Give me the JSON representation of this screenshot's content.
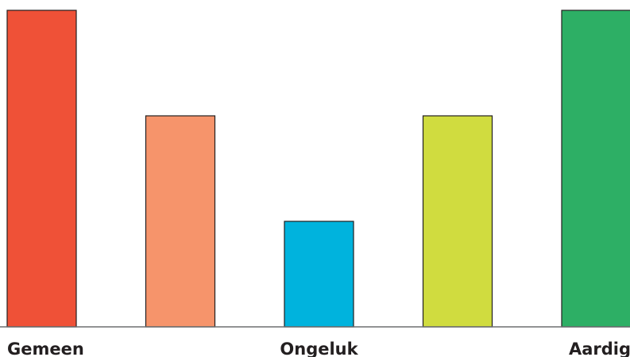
{
  "chart_data": {
    "type": "bar",
    "categories": [
      "Gemeen",
      "",
      "Ongeluk",
      "",
      "Aardig"
    ],
    "values": [
      3,
      2,
      1,
      2,
      3
    ],
    "ylim": [
      0,
      3
    ],
    "grid": false,
    "colors": [
      "#ef5137",
      "#f6946b",
      "#00b3dd",
      "#d0dc3f",
      "#2daf65"
    ],
    "bar_stroke": "#231f20",
    "axis_color": "#6d6e71"
  }
}
